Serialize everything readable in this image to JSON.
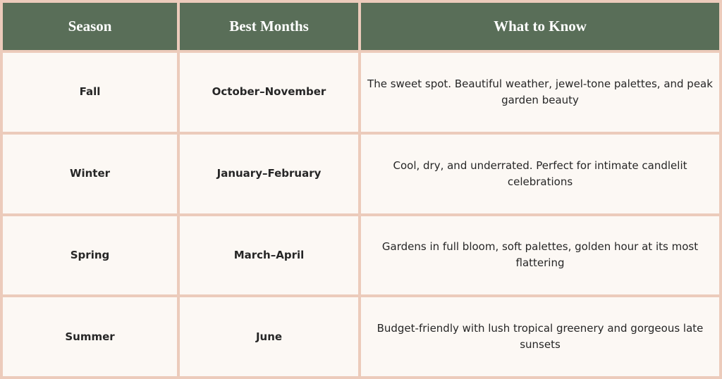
{
  "table": {
    "header": [
      "Season",
      "Best Months",
      "What to Know"
    ],
    "rows": [
      [
        "Fall",
        "October–November",
        "The sweet spot. Beautiful weather, jewel-tone palettes, and peak garden beauty"
      ],
      [
        "Winter",
        "January–February",
        "Cool, dry, and underrated. Perfect for intimate candlelit celebrations"
      ],
      [
        "Spring",
        "March–April",
        "Gardens in full bloom, soft palettes, golden hour at its most flattering"
      ],
      [
        "Summer",
        "June",
        "Budget-friendly with lush tropical greenery and gorgeous late sunsets"
      ]
    ]
  }
}
